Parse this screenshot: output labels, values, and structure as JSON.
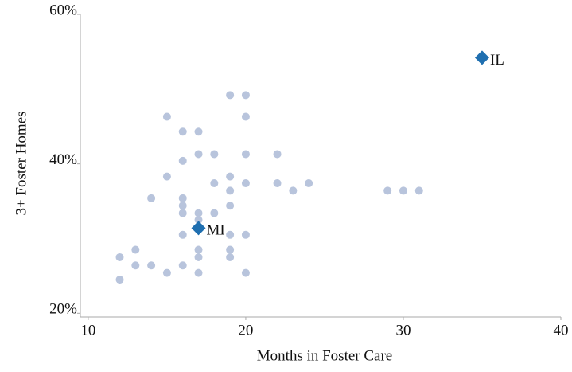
{
  "chart_data": {
    "type": "scatter",
    "x_label": "Months in Foster Care",
    "y_label": "3+ Foster Homes",
    "xlim": [
      9.5,
      40
    ],
    "xticks": [
      10,
      20,
      30,
      40
    ],
    "ylim": [
      19.5,
      60
    ],
    "yticks": [
      {
        "value": 20,
        "label": "20%"
      },
      {
        "value": 40,
        "label": "40%"
      },
      {
        "value": 60,
        "label": "60%"
      }
    ],
    "series": [
      {
        "color": "#b8c4dc",
        "x": [
          19,
          20,
          15,
          20,
          16,
          17,
          17,
          18,
          20,
          22,
          16,
          15,
          19,
          18,
          20,
          22,
          24,
          19,
          23,
          29,
          30,
          31,
          14,
          16,
          16,
          19,
          16,
          17,
          18,
          17,
          16,
          19,
          20,
          13,
          17,
          19,
          12,
          17,
          19,
          13,
          14,
          16,
          15,
          17,
          20,
          12
        ],
        "values": [
          49.2,
          49.2,
          46.3,
          46.3,
          44.3,
          44.3,
          41.3,
          41.3,
          41.3,
          41.3,
          40.4,
          38.3,
          38.3,
          37.4,
          37.4,
          37.4,
          37.4,
          36.4,
          36.4,
          36.4,
          36.4,
          36.4,
          35.4,
          35.4,
          34.4,
          34.4,
          33.4,
          33.4,
          33.4,
          32.5,
          30.5,
          30.5,
          30.5,
          28.5,
          28.5,
          28.5,
          27.5,
          27.5,
          27.5,
          26.4,
          26.4,
          26.4,
          25.4,
          25.4,
          25.4,
          24.5
        ]
      }
    ],
    "highlights": [
      {
        "label": "IL",
        "x": 35,
        "y": 54.2,
        "color": "#1f6fb0"
      },
      {
        "label": "MI",
        "x": 17,
        "y": 31.4,
        "color": "#1f6fb0"
      }
    ]
  }
}
